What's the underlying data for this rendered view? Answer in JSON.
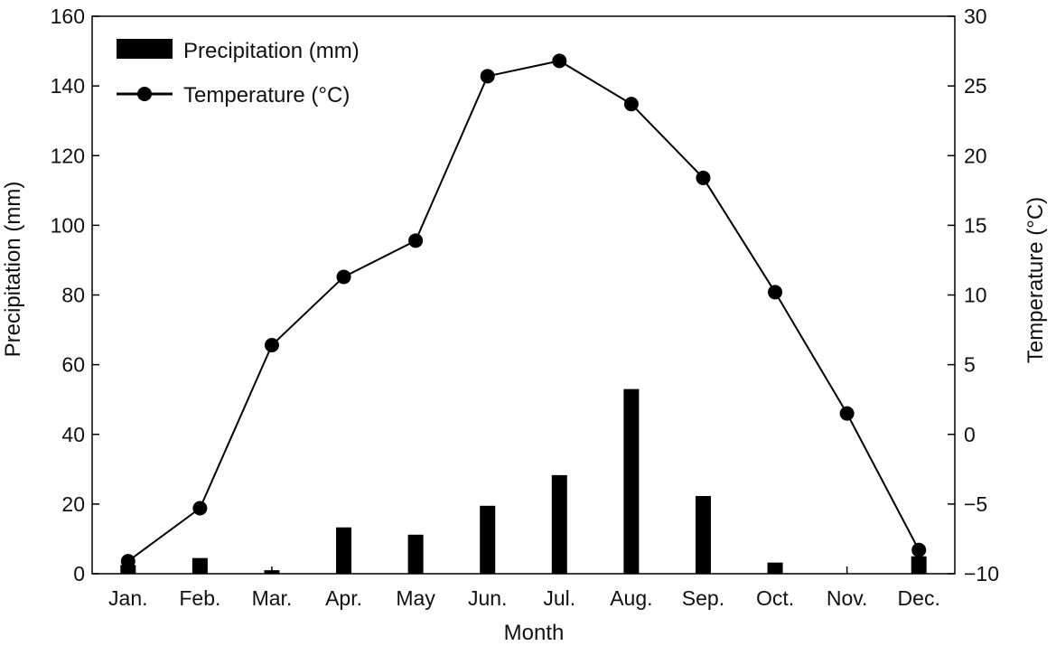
{
  "chart_data": {
    "type": "bar+line",
    "title": "",
    "categories": [
      "Jan.",
      "Feb.",
      "Mar.",
      "Apr.",
      "May",
      "Jun.",
      "Jul.",
      "Aug.",
      "Sep.",
      "Oct.",
      "Nov.",
      "Dec."
    ],
    "xlabel": "Month",
    "ylabel_left": "Precipitation (mm)",
    "ylabel_right": "Temperature (°C)",
    "ylim_left": [
      0,
      160
    ],
    "ylim_right": [
      -10,
      30
    ],
    "yticks_left": [
      "0",
      "20",
      "40",
      "60",
      "80",
      "100",
      "120",
      "140",
      "160"
    ],
    "yticks_right": [
      "−10",
      "−5",
      "0",
      "5",
      "10",
      "15",
      "20",
      "25",
      "30"
    ],
    "grid": false,
    "legend_position": "top-left",
    "series": [
      {
        "name": "Precipitation (mm)",
        "type": "bar",
        "axis": "left",
        "color": "#000000",
        "values": [
          2.5,
          4.5,
          1.0,
          13.3,
          11.2,
          19.5,
          28.3,
          53.0,
          22.3,
          3.2,
          0,
          5.0
        ]
      },
      {
        "name": "Temperature (°C)",
        "type": "line",
        "axis": "right",
        "color": "#000000",
        "values": [
          -9.1,
          -5.3,
          6.4,
          11.3,
          13.9,
          25.7,
          26.8,
          23.7,
          18.4,
          10.2,
          1.5,
          -8.3
        ]
      }
    ]
  }
}
